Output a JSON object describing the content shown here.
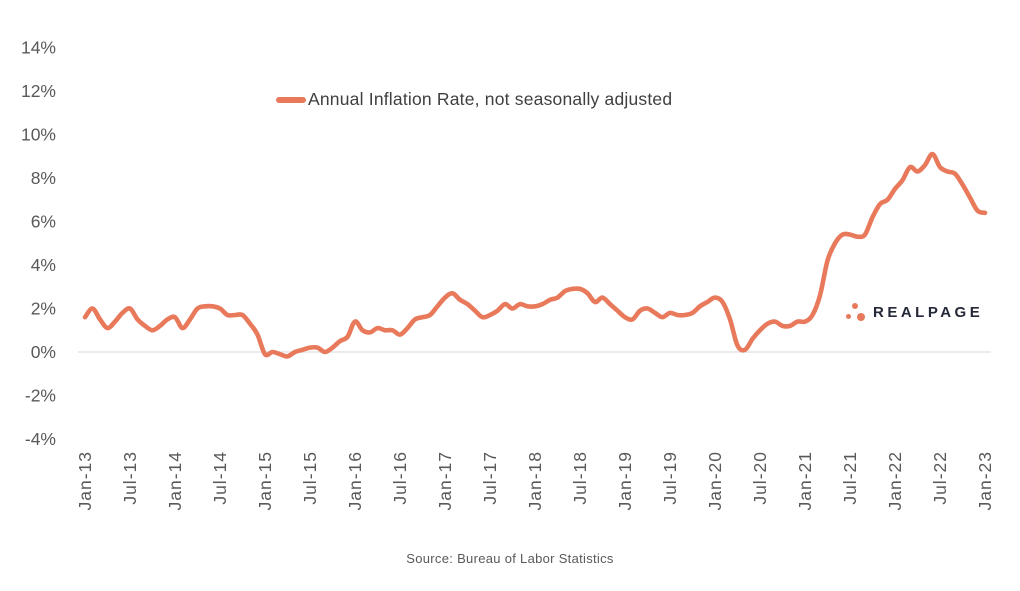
{
  "legend": {
    "label": "Annual Inflation Rate, not seasonally adjusted"
  },
  "source": {
    "text": "Source: Bureau of Labor Statistics"
  },
  "branding": {
    "wordmark": "REALPAGE",
    "logo_icon": "three-dots-icon",
    "accent_color": "#E87A5B",
    "wordmark_color": "#242837"
  },
  "colors": {
    "line": "#E87A5B",
    "axis_text": "#595959",
    "gridline": "#EBEBEB",
    "legend_text": "#3F3F3F"
  },
  "chart_data": {
    "type": "line",
    "title": "",
    "xlabel": "",
    "ylabel": "",
    "ylim": [
      -4,
      14
    ],
    "grid": "horizontal gridline at 0% only",
    "legend_position": "top-center",
    "series": [
      {
        "name": "Annual Inflation Rate, not seasonally adjusted",
        "frequency": "monthly",
        "x_start": "Jan-13",
        "x_end": "Jan-23",
        "values": [
          1.6,
          2.0,
          1.5,
          1.1,
          1.4,
          1.8,
          2.0,
          1.5,
          1.2,
          1.0,
          1.2,
          1.5,
          1.6,
          1.1,
          1.5,
          2.0,
          2.1,
          2.1,
          2.0,
          1.7,
          1.7,
          1.7,
          1.3,
          0.8,
          -0.1,
          0.0,
          -0.1,
          -0.2,
          0.0,
          0.1,
          0.2,
          0.2,
          0.0,
          0.2,
          0.5,
          0.7,
          1.4,
          1.0,
          0.9,
          1.1,
          1.0,
          1.0,
          0.8,
          1.1,
          1.5,
          1.6,
          1.7,
          2.1,
          2.5,
          2.7,
          2.4,
          2.2,
          1.9,
          1.6,
          1.7,
          1.9,
          2.2,
          2.0,
          2.2,
          2.1,
          2.1,
          2.2,
          2.4,
          2.5,
          2.8,
          2.9,
          2.9,
          2.7,
          2.3,
          2.5,
          2.2,
          1.9,
          1.6,
          1.5,
          1.9,
          2.0,
          1.8,
          1.6,
          1.8,
          1.7,
          1.7,
          1.8,
          2.1,
          2.3,
          2.5,
          2.3,
          1.5,
          0.3,
          0.1,
          0.6,
          1.0,
          1.3,
          1.4,
          1.2,
          1.2,
          1.4,
          1.4,
          1.7,
          2.6,
          4.2,
          5.0,
          5.4,
          5.4,
          5.3,
          5.4,
          6.2,
          6.8,
          7.0,
          7.5,
          7.9,
          8.5,
          8.3,
          8.6,
          9.1,
          8.5,
          8.3,
          8.2,
          7.7,
          7.1,
          6.5,
          6.4
        ]
      }
    ],
    "x_tick_labels": [
      "Jan-13",
      "Jul-13",
      "Jan-14",
      "Jul-14",
      "Jan-15",
      "Jul-15",
      "Jan-16",
      "Jul-16",
      "Jan-17",
      "Jul-17",
      "Jan-18",
      "Jul-18",
      "Jan-19",
      "Jul-19",
      "Jan-20",
      "Jul-20",
      "Jan-21",
      "Jul-21",
      "Jan-22",
      "Jul-22",
      "Jan-23"
    ],
    "x_tick_every_months": 6,
    "y_tick_labels": [
      "14%",
      "12%",
      "10%",
      "8%",
      "6%",
      "4%",
      "2%",
      "0%",
      "-2%",
      "-4%"
    ],
    "y_tick_values": [
      14,
      12,
      10,
      8,
      6,
      4,
      2,
      0,
      -2,
      -4
    ]
  }
}
